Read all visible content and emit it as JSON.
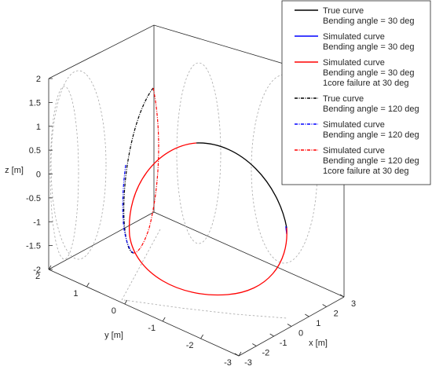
{
  "chart_data": {
    "type": "line3d",
    "xlabel": "x [m]",
    "ylabel": "y [m]",
    "zlabel": "z [m]",
    "xlim": [
      -3,
      3
    ],
    "ylim": [
      -3,
      2
    ],
    "zlim": [
      -2,
      2
    ],
    "xticks": [
      "-3",
      "-2",
      "-1",
      "0",
      "1",
      "2",
      "3"
    ],
    "yticks": [
      "2",
      "1",
      "0",
      "-1",
      "-2",
      "-3"
    ],
    "zticks": [
      "2",
      "1.5",
      "1",
      "0.5",
      "0",
      "-0.5",
      "-1",
      "-1.5",
      "-2"
    ],
    "legend_position": "top-right",
    "series": [
      {
        "lines": [
          "True curve",
          "Bending angle = 30 deg"
        ],
        "color": "#000000",
        "style": "solid"
      },
      {
        "lines": [
          "Simulated curve",
          "Bending angle = 30 deg"
        ],
        "color": "#0000ff",
        "style": "solid"
      },
      {
        "lines": [
          "Simulated curve",
          "Bending angle = 30 deg",
          "1core failure at 30 deg"
        ],
        "color": "#ff0000",
        "style": "solid"
      },
      {
        "lines": [
          "True curve",
          "Bending angle = 120 deg"
        ],
        "color": "#000000",
        "style": "dashdot"
      },
      {
        "lines": [
          "Simulated curve",
          "Bending angle = 120 deg"
        ],
        "color": "#0000ff",
        "style": "dashdot"
      },
      {
        "lines": [
          "Simulated curve",
          "Bending angle = 120 deg",
          "1core failure at 30 deg"
        ],
        "color": "#ff0000",
        "style": "dashdot"
      }
    ]
  }
}
